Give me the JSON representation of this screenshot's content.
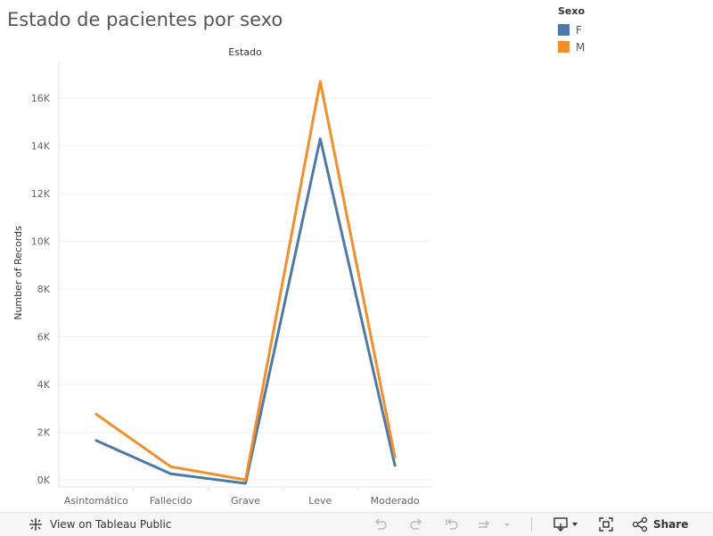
{
  "title": "Estado de pacientes por sexo",
  "legend": {
    "title": "Sexo",
    "items": [
      {
        "label": "F",
        "color": "#4e79a7"
      },
      {
        "label": "M",
        "color": "#f28e2b"
      }
    ]
  },
  "chart_data": {
    "type": "line",
    "title": "Estado de pacientes por sexo",
    "column_header": "Estado",
    "xlabel": "",
    "ylabel": "Number of Records",
    "categories": [
      "Asintomático",
      "Fallecido",
      "Grave",
      "Leve",
      "Moderado"
    ],
    "series": [
      {
        "name": "F",
        "color": "#4e79a7",
        "values": [
          1650,
          250,
          -150,
          14300,
          600
        ]
      },
      {
        "name": "M",
        "color": "#f28e2b",
        "values": [
          2750,
          550,
          0,
          16700,
          950
        ]
      }
    ],
    "ylim": [
      -300,
      17500
    ],
    "yticks": [
      0,
      2000,
      4000,
      6000,
      8000,
      10000,
      12000,
      14000,
      16000
    ],
    "ytick_labels": [
      "0K",
      "2K",
      "4K",
      "6K",
      "8K",
      "10K",
      "12K",
      "14K",
      "16K"
    ],
    "grid": true,
    "legend_position": "top-right"
  },
  "footer": {
    "view_label": "View on Tableau Public",
    "share_label": "Share",
    "icons": [
      "tableau-logo-icon",
      "undo-icon",
      "redo-icon",
      "revert-icon",
      "refresh-icon",
      "download-icon",
      "fullscreen-icon",
      "share-icon"
    ]
  }
}
